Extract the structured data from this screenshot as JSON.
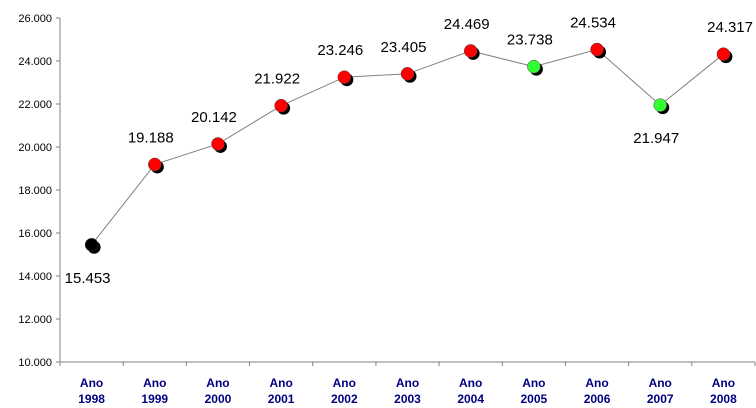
{
  "chart_data": {
    "type": "line",
    "title": "",
    "xlabel": "",
    "ylabel": "",
    "categories": [
      [
        "Ano",
        "1998"
      ],
      [
        "Ano",
        "1999"
      ],
      [
        "Ano",
        "2000"
      ],
      [
        "Ano",
        "2001"
      ],
      [
        "Ano",
        "2002"
      ],
      [
        "Ano",
        "2003"
      ],
      [
        "Ano",
        "2004"
      ],
      [
        "Ano",
        "2005"
      ],
      [
        "Ano",
        "2006"
      ],
      [
        "Ano",
        "2007"
      ],
      [
        "Ano",
        "2008"
      ]
    ],
    "values": [
      15453,
      19188,
      20142,
      21922,
      23246,
      23405,
      24469,
      23738,
      24534,
      21947,
      24317
    ],
    "data_labels": [
      "15.453",
      "19.188",
      "20.142",
      "21.922",
      "23.246",
      "23.405",
      "24.469",
      "23.738",
      "24.534",
      "21.947",
      "24.317"
    ],
    "label_position": [
      "below",
      "above",
      "above",
      "above",
      "above",
      "above",
      "above",
      "above",
      "above",
      "below",
      "above"
    ],
    "marker_colors": [
      "#000000",
      "#ff0000",
      "#ff0000",
      "#ff0000",
      "#ff0000",
      "#ff0000",
      "#ff0000",
      "#33ff33",
      "#ff0000",
      "#33ff33",
      "#ff0000"
    ],
    "y_ticks": [
      10000,
      12000,
      14000,
      16000,
      18000,
      20000,
      22000,
      24000,
      26000
    ],
    "y_tick_labels": [
      "10.000",
      "12.000",
      "14.000",
      "16.000",
      "18.000",
      "20.000",
      "22.000",
      "24.000",
      "26.000"
    ],
    "ylim": [
      10000,
      26000
    ],
    "grid": false,
    "legend": "none",
    "colors": {
      "line": "#808080",
      "axis": "#808080",
      "x_tick_text": "#000080",
      "marker_shadow": "#000000"
    }
  }
}
